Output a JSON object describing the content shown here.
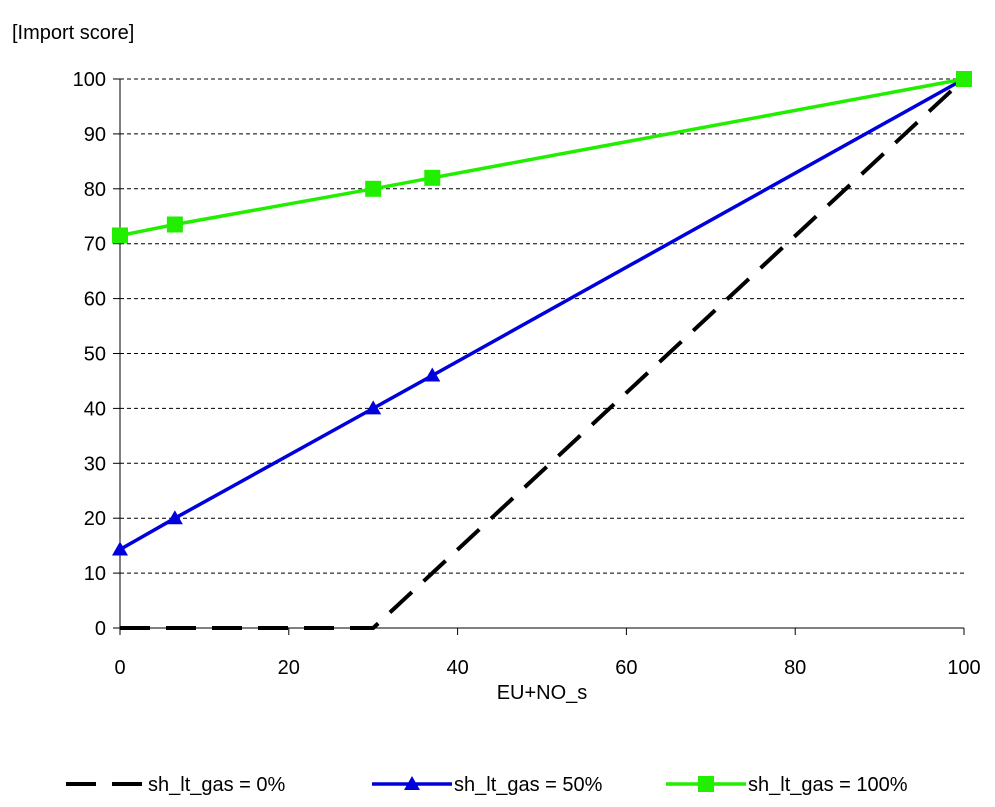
{
  "chart_data": {
    "type": "line",
    "title": "",
    "ylabel": "[Import score]",
    "xlabel": "EU+NO_s",
    "xlim": [
      0,
      100
    ],
    "ylim": [
      0,
      100
    ],
    "xticks": [
      0,
      20,
      40,
      60,
      80,
      100
    ],
    "yticks": [
      0,
      10,
      20,
      30,
      40,
      50,
      60,
      70,
      80,
      90,
      100
    ],
    "grid": "horizontal dashed",
    "legend_position": "bottom",
    "series": [
      {
        "name": "sh_lt_gas = 0%",
        "color": "#000000",
        "line_style": "dashed",
        "marker": "none",
        "x": [
          0,
          6.5,
          30,
          37,
          100
        ],
        "y": [
          0,
          0,
          0,
          10,
          100
        ]
      },
      {
        "name": "sh_lt_gas = 50%",
        "color": "#0000dd",
        "line_style": "solid",
        "marker": "triangle",
        "x": [
          0,
          6.5,
          30,
          37,
          100
        ],
        "y": [
          14.3,
          20,
          40,
          46,
          100
        ]
      },
      {
        "name": "sh_lt_gas = 100%",
        "color": "#22ee00",
        "line_style": "solid",
        "marker": "square",
        "x": [
          0,
          6.5,
          30,
          37,
          100
        ],
        "y": [
          71.5,
          73.5,
          80,
          82,
          100
        ]
      }
    ]
  }
}
